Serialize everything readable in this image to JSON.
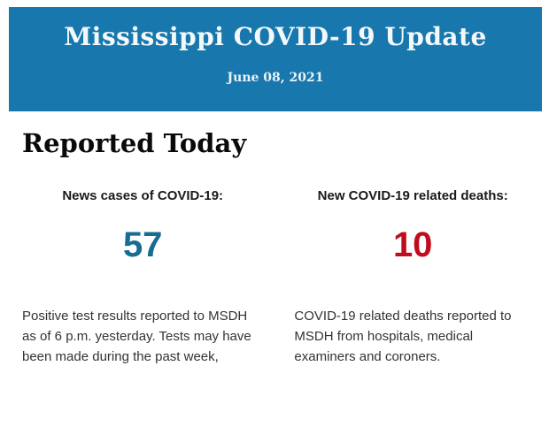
{
  "header": {
    "title": "Mississippi COVID-19 Update",
    "date": "June 08, 2021",
    "background_color": "#1878ae"
  },
  "section": {
    "heading": "Reported Today"
  },
  "stats": [
    {
      "label": "News cases of COVID-19:",
      "value": "57",
      "value_color": "#176c93",
      "description": "Positive test results reported to MSDH as of 6 p.m. yesterday. Tests may have been made during the past week,"
    },
    {
      "label": "New COVID-19 related deaths:",
      "value": "10",
      "value_color": "#c00d1e",
      "description": "COVID-19 related deaths reported to MSDH from hospitals, medical examiners and coroners."
    }
  ]
}
